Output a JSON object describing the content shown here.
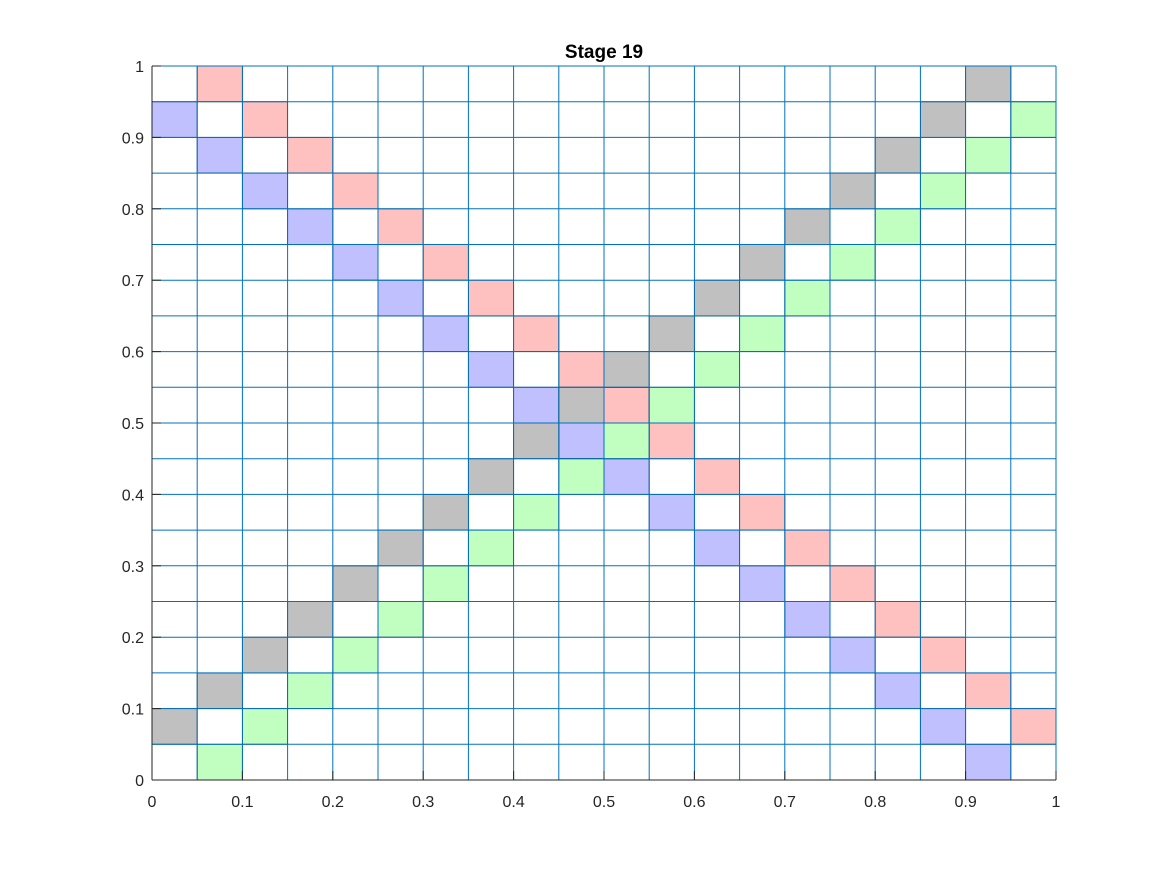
{
  "chart_data": {
    "type": "heatmap",
    "title": "Stage 19",
    "xlabel": "",
    "ylabel": "",
    "xlim": [
      0,
      1
    ],
    "ylim": [
      0,
      1
    ],
    "grid_divisions": 20,
    "grid": true,
    "xticks": [
      "0",
      "0.1",
      "0.2",
      "0.3",
      "0.4",
      "0.5",
      "0.6",
      "0.7",
      "0.8",
      "0.9",
      "1"
    ],
    "yticks": [
      "0",
      "0.1",
      "0.2",
      "0.3",
      "0.4",
      "0.5",
      "0.6",
      "0.7",
      "0.8",
      "0.9",
      "1"
    ],
    "colors": {
      "red": "#ffc0c0",
      "blue": "#c0c0ff",
      "gray": "#c0c0c0",
      "green": "#c0ffc0",
      "grid": "#0072bd",
      "axis": "#262626"
    },
    "cells": {
      "red": [
        [
          1,
          19
        ],
        [
          2,
          18
        ],
        [
          3,
          17
        ],
        [
          4,
          16
        ],
        [
          5,
          15
        ],
        [
          6,
          14
        ],
        [
          7,
          13
        ],
        [
          8,
          12
        ],
        [
          9,
          11
        ],
        [
          10,
          10
        ],
        [
          11,
          9
        ],
        [
          12,
          8
        ],
        [
          13,
          7
        ],
        [
          14,
          6
        ],
        [
          15,
          5
        ],
        [
          16,
          4
        ],
        [
          17,
          3
        ],
        [
          18,
          2
        ],
        [
          19,
          1
        ]
      ],
      "blue": [
        [
          0,
          18
        ],
        [
          1,
          17
        ],
        [
          2,
          16
        ],
        [
          3,
          15
        ],
        [
          4,
          14
        ],
        [
          5,
          13
        ],
        [
          6,
          12
        ],
        [
          7,
          11
        ],
        [
          8,
          10
        ],
        [
          9,
          9
        ],
        [
          10,
          8
        ],
        [
          11,
          7
        ],
        [
          12,
          6
        ],
        [
          13,
          5
        ],
        [
          14,
          4
        ],
        [
          15,
          3
        ],
        [
          16,
          2
        ],
        [
          17,
          1
        ],
        [
          18,
          0
        ]
      ],
      "gray": [
        [
          0,
          1
        ],
        [
          1,
          2
        ],
        [
          2,
          3
        ],
        [
          3,
          4
        ],
        [
          4,
          5
        ],
        [
          5,
          6
        ],
        [
          6,
          7
        ],
        [
          7,
          8
        ],
        [
          8,
          9
        ],
        [
          9,
          10
        ],
        [
          10,
          11
        ],
        [
          11,
          12
        ],
        [
          12,
          13
        ],
        [
          13,
          14
        ],
        [
          14,
          15
        ],
        [
          15,
          16
        ],
        [
          16,
          17
        ],
        [
          17,
          18
        ],
        [
          18,
          19
        ]
      ],
      "green": [
        [
          1,
          0
        ],
        [
          2,
          1
        ],
        [
          3,
          2
        ],
        [
          4,
          3
        ],
        [
          5,
          4
        ],
        [
          6,
          5
        ],
        [
          7,
          6
        ],
        [
          8,
          7
        ],
        [
          9,
          8
        ],
        [
          10,
          9
        ],
        [
          11,
          10
        ],
        [
          12,
          11
        ],
        [
          13,
          12
        ],
        [
          14,
          13
        ],
        [
          15,
          14
        ],
        [
          16,
          15
        ],
        [
          17,
          16
        ],
        [
          18,
          17
        ],
        [
          19,
          18
        ]
      ]
    }
  }
}
